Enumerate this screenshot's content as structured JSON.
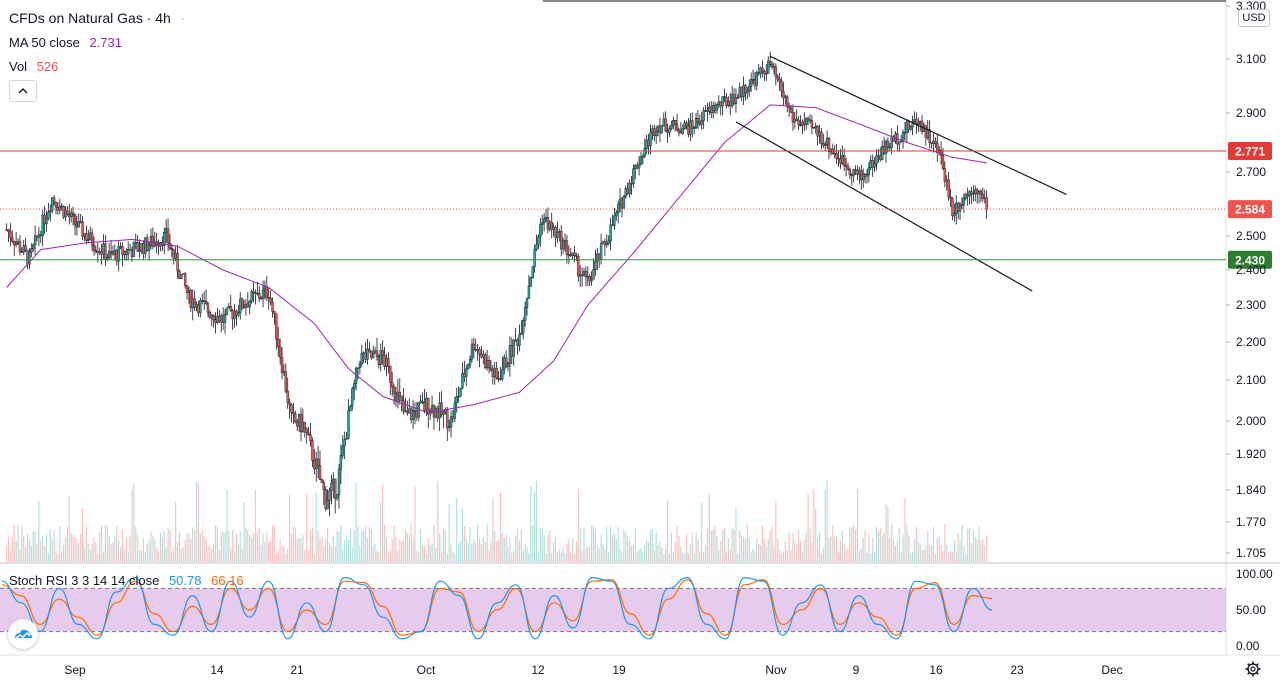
{
  "legend": {
    "title": "CFDs on Natural Gas · 4h",
    "ma_label": "MA 50 close",
    "ma_value": "2.731",
    "vol_label": "Vol",
    "vol_value": "526"
  },
  "stoch_legend": {
    "label": "Stoch RSI 3 3 14 14 close",
    "k_value": "50.78",
    "d_value": "66.16"
  },
  "currency": "USD",
  "colors": {
    "up": "#26a69a",
    "down": "#ef5350",
    "ma": "#9c27b0",
    "resistance": "#e53935",
    "support": "#388e3c",
    "stoch_k": "#2196f3",
    "stoch_d": "#ff6d00",
    "stoch_band": "#e1bee7"
  },
  "chart_data": {
    "type": "candlestick",
    "timeframe": "4h",
    "symbol": "CFDs on Natural Gas",
    "price_axis_ticks": [
      "3.300",
      "3.100",
      "2.900",
      "2.700",
      "2.500",
      "2.400",
      "2.300",
      "2.200",
      "2.100",
      "2.000",
      "1.920",
      "1.840",
      "1.770",
      "1.705"
    ],
    "x_axis_ticks": [
      "Sep",
      "14",
      "21",
      "Oct",
      "12",
      "19",
      "Nov",
      "9",
      "16",
      "23",
      "Dec"
    ],
    "price_labels": [
      {
        "value": "2.771",
        "kind": "resistance"
      },
      {
        "value": "2.584",
        "kind": "last"
      },
      {
        "value": "2.430",
        "kind": "support"
      }
    ],
    "price_path": [
      {
        "x": "Aug 26",
        "y": 2.52
      },
      {
        "x": "Aug 28",
        "y": 2.43
      },
      {
        "x": "Aug 30",
        "y": 2.62
      },
      {
        "x": "Sep 2",
        "y": 2.5
      },
      {
        "x": "Sep 4",
        "y": 2.44
      },
      {
        "x": "Sep 7",
        "y": 2.47
      },
      {
        "x": "Sep 9",
        "y": 2.5
      },
      {
        "x": "Sep 11",
        "y": 2.32
      },
      {
        "x": "Sep 14",
        "y": 2.26
      },
      {
        "x": "Sep 16",
        "y": 2.31
      },
      {
        "x": "Sep 18",
        "y": 2.34
      },
      {
        "x": "Sep 20",
        "y": 2.0
      },
      {
        "x": "Sep 21",
        "y": 1.99
      },
      {
        "x": "Sep 23",
        "y": 1.82
      },
      {
        "x": "Sep 24",
        "y": 1.85
      },
      {
        "x": "Sep 26",
        "y": 2.16
      },
      {
        "x": "Sep 28",
        "y": 2.16
      },
      {
        "x": "Sep 30",
        "y": 2.01
      },
      {
        "x": "Oct 2",
        "y": 2.04
      },
      {
        "x": "Oct 4",
        "y": 2.0
      },
      {
        "x": "Oct 6",
        "y": 2.2
      },
      {
        "x": "Oct 8",
        "y": 2.1
      },
      {
        "x": "Oct 10",
        "y": 2.22
      },
      {
        "x": "Oct 12",
        "y": 2.56
      },
      {
        "x": "Oct 14",
        "y": 2.47
      },
      {
        "x": "Oct 16",
        "y": 2.36
      },
      {
        "x": "Oct 18",
        "y": 2.52
      },
      {
        "x": "Oct 20",
        "y": 2.7
      },
      {
        "x": "Oct 22",
        "y": 2.86
      },
      {
        "x": "Oct 25",
        "y": 2.85
      },
      {
        "x": "Oct 27",
        "y": 2.92
      },
      {
        "x": "Oct 29",
        "y": 2.96
      },
      {
        "x": "Nov 1",
        "y": 3.08
      },
      {
        "x": "Nov 3",
        "y": 2.88
      },
      {
        "x": "Nov 5",
        "y": 2.84
      },
      {
        "x": "Nov 7",
        "y": 2.75
      },
      {
        "x": "Nov 9",
        "y": 2.68
      },
      {
        "x": "Nov 11",
        "y": 2.78
      },
      {
        "x": "Nov 14",
        "y": 2.88
      },
      {
        "x": "Nov 16",
        "y": 2.75
      },
      {
        "x": "Nov 17",
        "y": 2.58
      },
      {
        "x": "Nov 19",
        "y": 2.66
      },
      {
        "x": "Nov 20",
        "y": 2.584
      }
    ],
    "ma50_path": [
      {
        "x": "Aug 26",
        "y": 2.35
      },
      {
        "x": "Aug 29",
        "y": 2.46
      },
      {
        "x": "Sep 2",
        "y": 2.48
      },
      {
        "x": "Sep 6",
        "y": 2.49
      },
      {
        "x": "Sep 10",
        "y": 2.47
      },
      {
        "x": "Sep 14",
        "y": 2.4
      },
      {
        "x": "Sep 18",
        "y": 2.35
      },
      {
        "x": "Sep 22",
        "y": 2.25
      },
      {
        "x": "Sep 25",
        "y": 2.13
      },
      {
        "x": "Sep 28",
        "y": 2.06
      },
      {
        "x": "Oct 2",
        "y": 2.02
      },
      {
        "x": "Oct 6",
        "y": 2.04
      },
      {
        "x": "Oct 10",
        "y": 2.07
      },
      {
        "x": "Oct 13",
        "y": 2.15
      },
      {
        "x": "Oct 16",
        "y": 2.3
      },
      {
        "x": "Oct 20",
        "y": 2.45
      },
      {
        "x": "Oct 24",
        "y": 2.62
      },
      {
        "x": "Oct 28",
        "y": 2.8
      },
      {
        "x": "Nov 1",
        "y": 2.93
      },
      {
        "x": "Nov 5",
        "y": 2.92
      },
      {
        "x": "Nov 9",
        "y": 2.86
      },
      {
        "x": "Nov 13",
        "y": 2.8
      },
      {
        "x": "Nov 17",
        "y": 2.75
      },
      {
        "x": "Nov 20",
        "y": 2.731
      }
    ],
    "channel_lines": [
      {
        "from": {
          "x": "Nov 1",
          "y": 3.11
        },
        "to": {
          "x": "Nov 27",
          "y": 2.63
        }
      },
      {
        "from": {
          "x": "Oct 29",
          "y": 2.87
        },
        "to": {
          "x": "Nov 24",
          "y": 2.34
        }
      }
    ],
    "horizontal_levels": [
      2.771,
      2.584,
      2.43
    ],
    "last_price": 2.584,
    "ma50_last": 2.731,
    "volume_last": 526
  },
  "stoch_data": {
    "type": "line",
    "axis_ticks": [
      "100.00",
      "50.00",
      "0.00"
    ],
    "upper_band": 80,
    "lower_band": 20,
    "k_path": [
      90,
      60,
      20,
      80,
      30,
      10,
      75,
      95,
      30,
      15,
      70,
      20,
      90,
      40,
      90,
      10,
      60,
      20,
      95,
      85,
      40,
      10,
      20,
      90,
      70,
      10,
      60,
      85,
      10,
      70,
      25,
      95,
      90,
      30,
      10,
      80,
      95,
      30,
      10,
      95,
      90,
      15,
      60,
      85,
      20,
      70,
      30,
      10,
      90,
      85,
      20,
      80,
      50
    ],
    "d_path": [
      85,
      70,
      30,
      65,
      40,
      15,
      60,
      90,
      45,
      20,
      55,
      30,
      80,
      50,
      80,
      20,
      50,
      30,
      90,
      88,
      55,
      15,
      20,
      80,
      75,
      20,
      50,
      80,
      20,
      60,
      35,
      90,
      92,
      45,
      15,
      65,
      92,
      45,
      15,
      85,
      92,
      30,
      50,
      80,
      30,
      60,
      40,
      15,
      80,
      88,
      30,
      70,
      66
    ],
    "k_last": 50.78,
    "d_last": 66.16
  }
}
